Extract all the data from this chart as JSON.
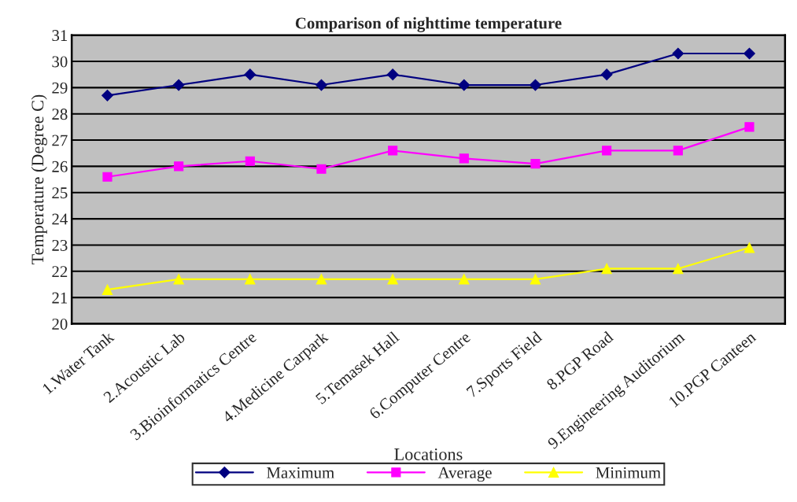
{
  "chart_data": {
    "type": "line",
    "title": "Comparison of nighttime temperature",
    "xlabel": "Locations",
    "ylabel": "Temperature (Degree C)",
    "categories": [
      "1.Water Tank",
      "2.Acoustic Lab",
      "3.Bioinformatics Centre",
      "4.Medicine Carpark",
      "5.Temasek Hall",
      "6.Computer Centre",
      "7.Sports Field",
      "8.PGP Road",
      "9.Engineering Auditorium",
      "10.PGP Canteen"
    ],
    "series": [
      {
        "name": "Maximum",
        "color": "#000080",
        "marker": "diamond",
        "values": [
          28.7,
          29.1,
          29.5,
          29.1,
          29.5,
          29.1,
          29.1,
          29.5,
          30.3,
          30.3
        ]
      },
      {
        "name": "Average",
        "color": "#ff00ff",
        "marker": "square",
        "values": [
          25.6,
          26.0,
          26.2,
          25.9,
          26.6,
          26.3,
          26.1,
          26.6,
          26.6,
          27.5
        ]
      },
      {
        "name": "Minimum",
        "color": "#ffff00",
        "marker": "triangle",
        "values": [
          21.3,
          21.7,
          21.7,
          21.7,
          21.7,
          21.7,
          21.7,
          22.1,
          22.1,
          22.9
        ]
      }
    ],
    "ylim": [
      20,
      31
    ],
    "yticks": [
      20,
      21,
      22,
      23,
      24,
      25,
      26,
      27,
      28,
      29,
      30,
      31
    ],
    "grid": "y",
    "legend": "bottom",
    "line_style": "solid"
  }
}
